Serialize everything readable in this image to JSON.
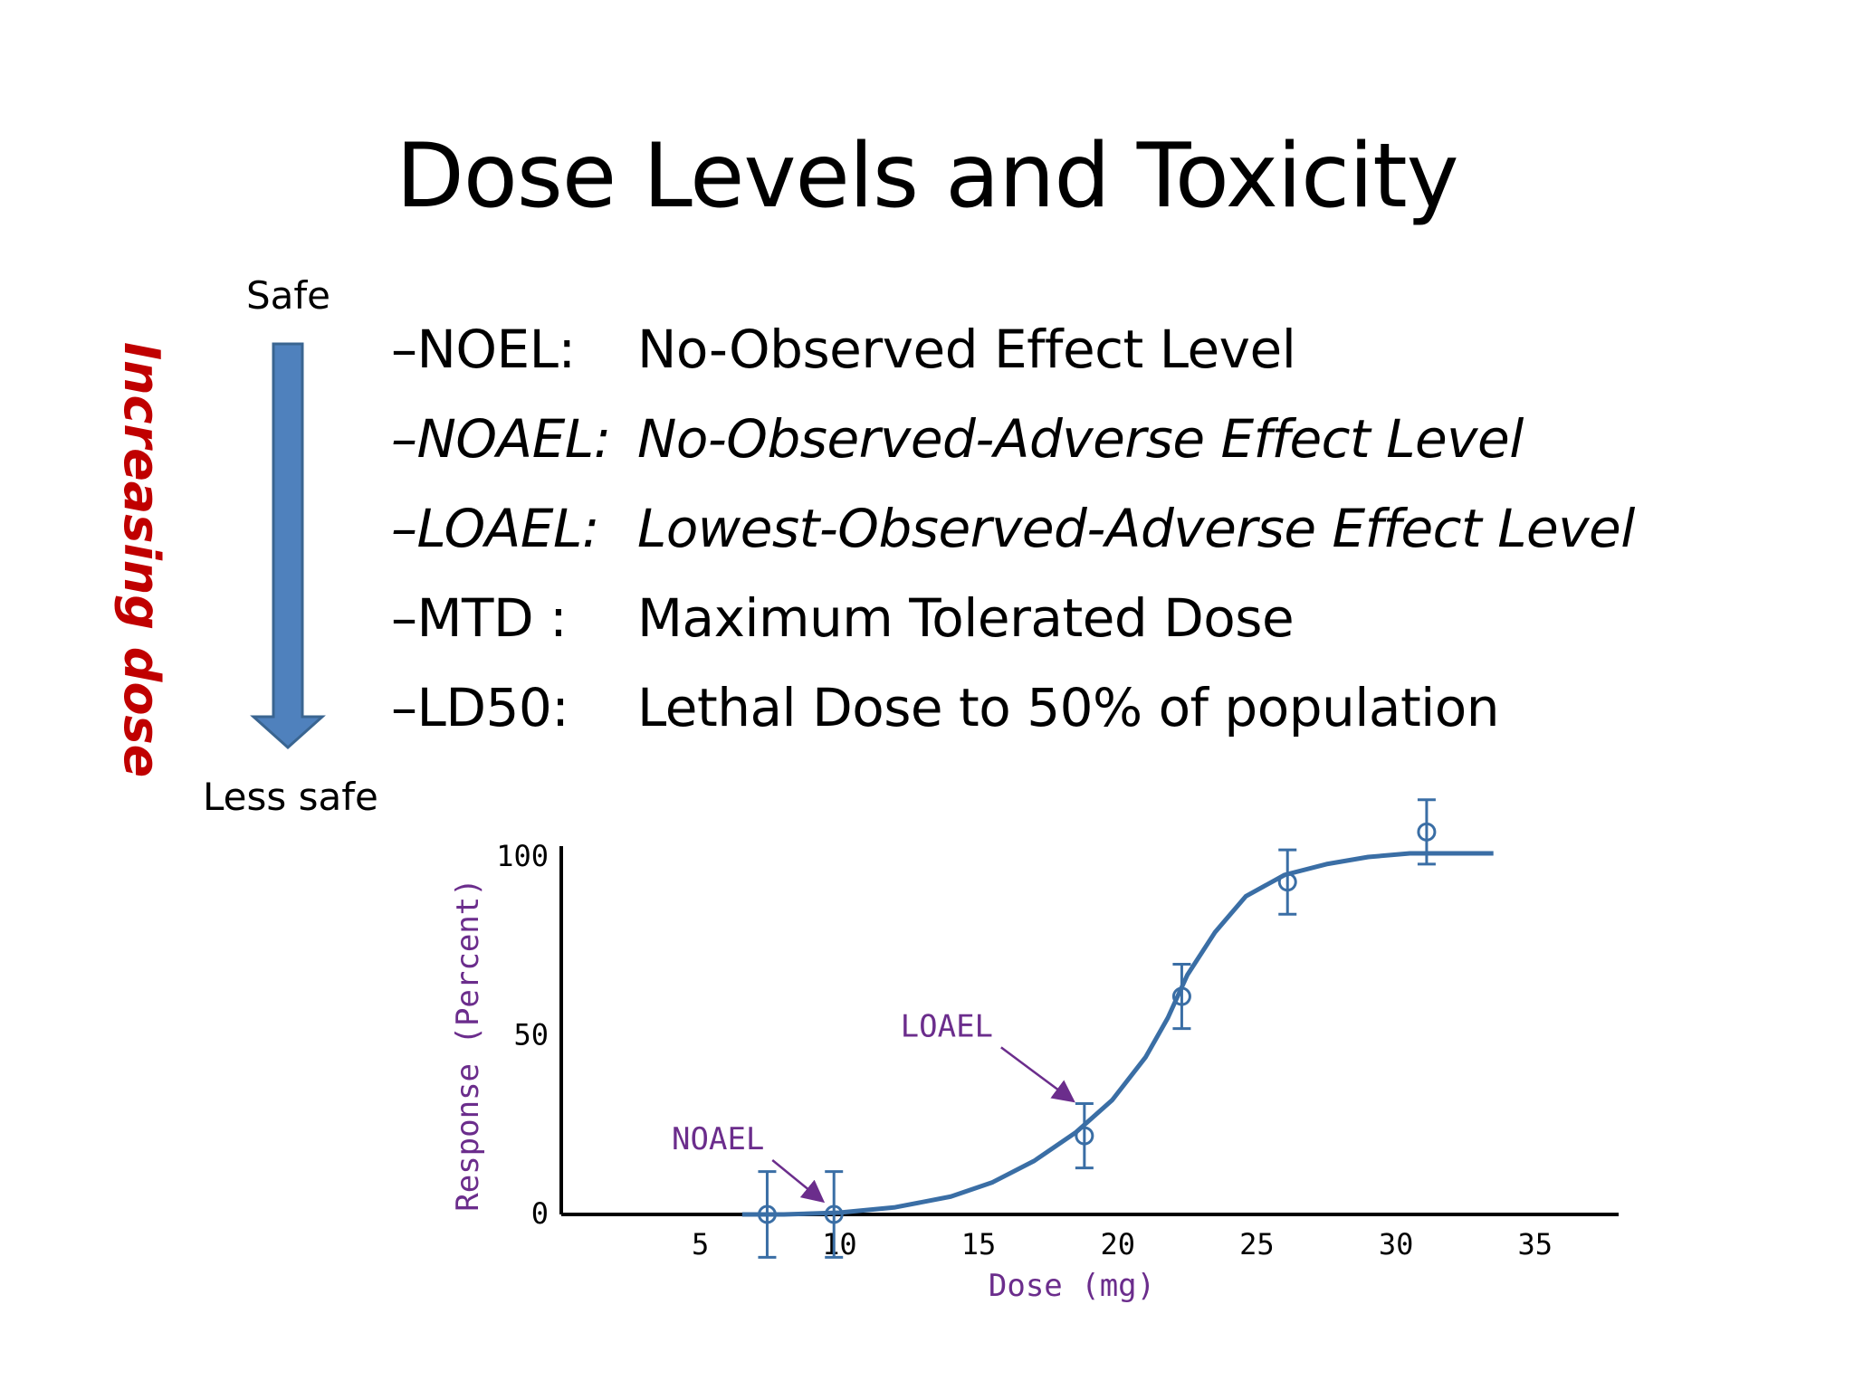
{
  "slide": {
    "title": "Dose Levels and Toxicity",
    "scale_top": "Safe",
    "scale_bottom": "Less safe",
    "direction_label": "Increasing dose",
    "arrow_color": "#4f81bd",
    "definitions": [
      {
        "abbr": "–NOEL:",
        "text": "No-Observed Effect Level",
        "italic": false
      },
      {
        "abbr": "–NOAEL:",
        "text": "No-Observed-Adverse Effect Level",
        "italic": true
      },
      {
        "abbr": "–LOAEL:",
        "text": "Lowest-Observed-Adverse Effect Level",
        "italic": true
      },
      {
        "abbr": "–MTD :",
        "text": "Maximum Tolerated Dose",
        "italic": false
      },
      {
        "abbr": "–LD50:",
        "text": "Lethal Dose to 50% of population",
        "italic": false
      }
    ]
  },
  "chart_data": {
    "type": "line",
    "xlabel": "Dose (mg)",
    "ylabel": "Response (Percent)",
    "xlim": [
      0,
      38
    ],
    "ylim": [
      0,
      100
    ],
    "x_ticks": [
      5,
      10,
      15,
      20,
      25,
      30,
      35
    ],
    "y_ticks": [
      0,
      50,
      100
    ],
    "grid": false,
    "colors": {
      "curve": "#3a6ea5",
      "labels": "#6b2d8c"
    },
    "curve": {
      "x": [
        6.5,
        8,
        10,
        12,
        14,
        15.5,
        17,
        18.5,
        19.8,
        21,
        21.8,
        22.5,
        23.5,
        24.6,
        26,
        27.5,
        29,
        30.5,
        32,
        33.5
      ],
      "y": [
        0,
        0,
        0.5,
        2,
        5,
        9,
        15,
        23,
        32,
        44,
        55,
        67,
        79,
        89,
        95,
        98,
        100,
        101,
        101,
        101
      ]
    },
    "points": {
      "x": [
        7.4,
        9.8,
        18.8,
        22.3,
        26.1,
        31.1
      ],
      "y": [
        0,
        0,
        22,
        61,
        93,
        107
      ],
      "err": [
        12,
        12,
        9,
        9,
        9,
        9
      ]
    },
    "annotations": [
      {
        "text": "NOAEL",
        "x": 9.8,
        "y": 0
      },
      {
        "text": "LOAEL",
        "x": 18.8,
        "y": 28
      }
    ]
  }
}
